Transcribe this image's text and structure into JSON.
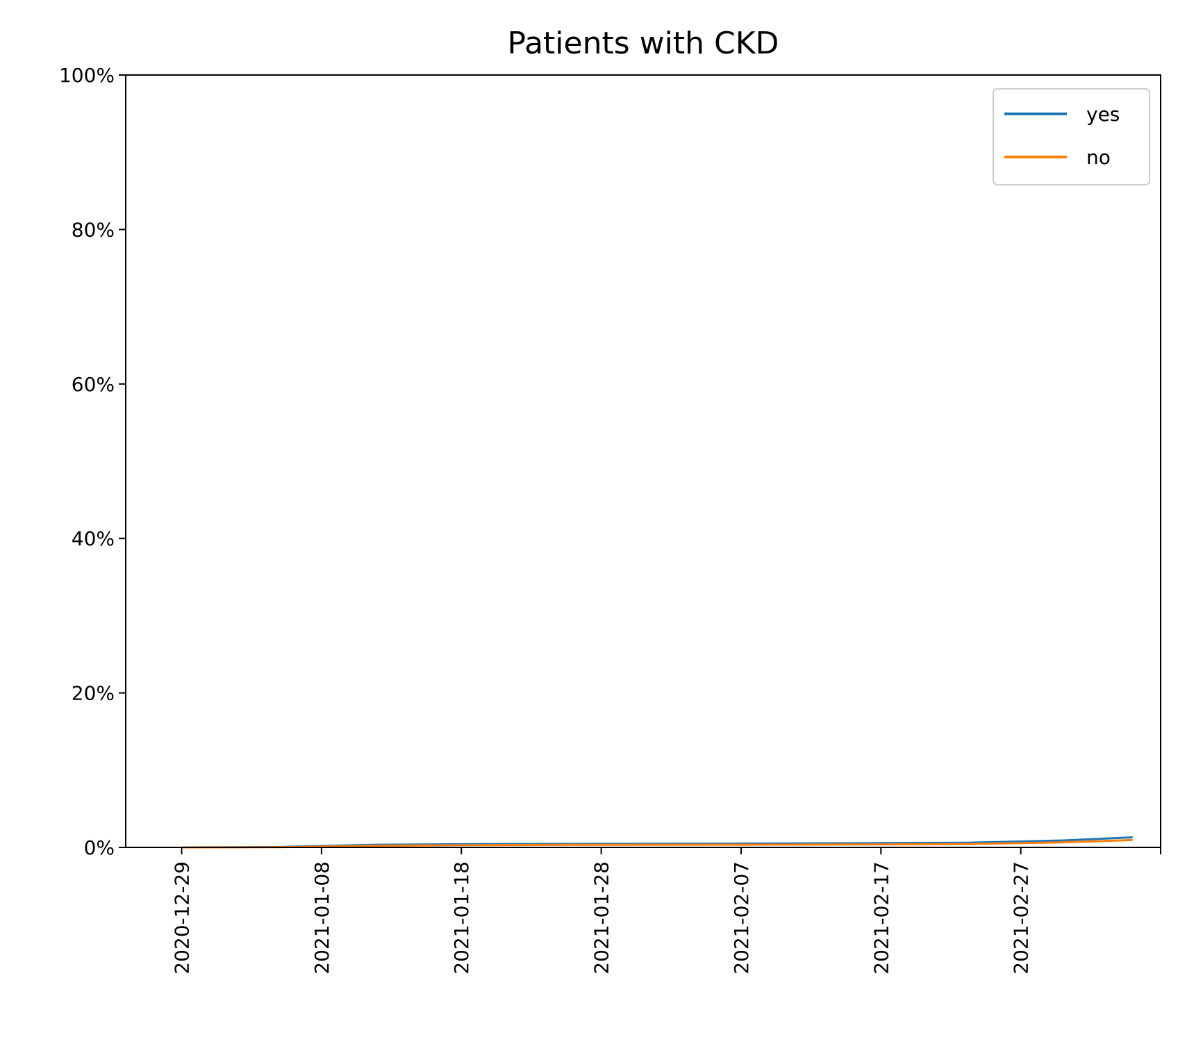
{
  "chart_data": {
    "type": "line",
    "title": "Patients with CKD",
    "xlabel": "",
    "ylabel": "",
    "x_ticks": [
      "2020-12-29",
      "2021-01-08",
      "2021-01-18",
      "2021-01-28",
      "2021-02-07",
      "2021-02-17",
      "2021-02-27"
    ],
    "y_ticks": [
      "0%",
      "20%",
      "40%",
      "60%",
      "80%",
      "100%"
    ],
    "ylim": [
      0,
      100
    ],
    "xlim": [
      "2020-12-25",
      "2021-03-09"
    ],
    "y_unit": "%",
    "grid": false,
    "legend_position": "top-right",
    "x": [
      "2020-12-29",
      "2021-01-05",
      "2021-01-12",
      "2021-01-19",
      "2021-01-26",
      "2021-02-02",
      "2021-02-09",
      "2021-02-16",
      "2021-02-23",
      "2021-03-02",
      "2021-03-07"
    ],
    "series": [
      {
        "name": "yes",
        "color": "#1f77b4",
        "values": [
          0.0,
          0.05,
          0.35,
          0.42,
          0.45,
          0.48,
          0.5,
          0.55,
          0.6,
          0.9,
          1.3
        ]
      },
      {
        "name": "no",
        "color": "#ff7f0e",
        "values": [
          0.0,
          0.03,
          0.22,
          0.3,
          0.33,
          0.35,
          0.36,
          0.38,
          0.42,
          0.65,
          0.95
        ]
      }
    ]
  }
}
